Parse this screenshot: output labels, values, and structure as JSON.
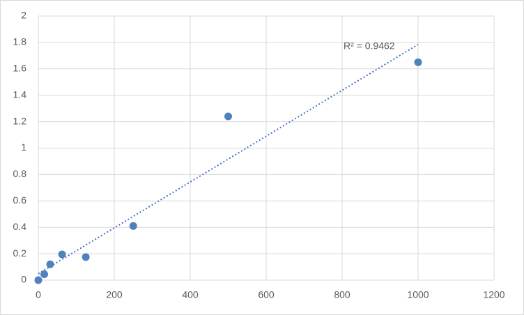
{
  "chart_data": {
    "type": "scatter",
    "x": [
      0,
      15.625,
      31.25,
      62.5,
      125,
      250,
      500,
      1000
    ],
    "values": [
      0,
      0.045,
      0.12,
      0.195,
      0.175,
      0.41,
      1.24,
      1.65
    ],
    "color": "#4f81bd",
    "trendline": "linear",
    "trendline_color": "#4472c4",
    "annotation": "R² = 0.9462",
    "xlim": [
      0,
      1200
    ],
    "xticks": [
      0,
      200,
      400,
      600,
      800,
      1000,
      1200
    ],
    "ylim": [
      0,
      2
    ],
    "yticks": [
      0,
      0.2,
      0.4,
      0.6,
      0.8,
      1,
      1.2,
      1.4,
      1.6,
      1.8,
      2
    ],
    "grid": true
  }
}
